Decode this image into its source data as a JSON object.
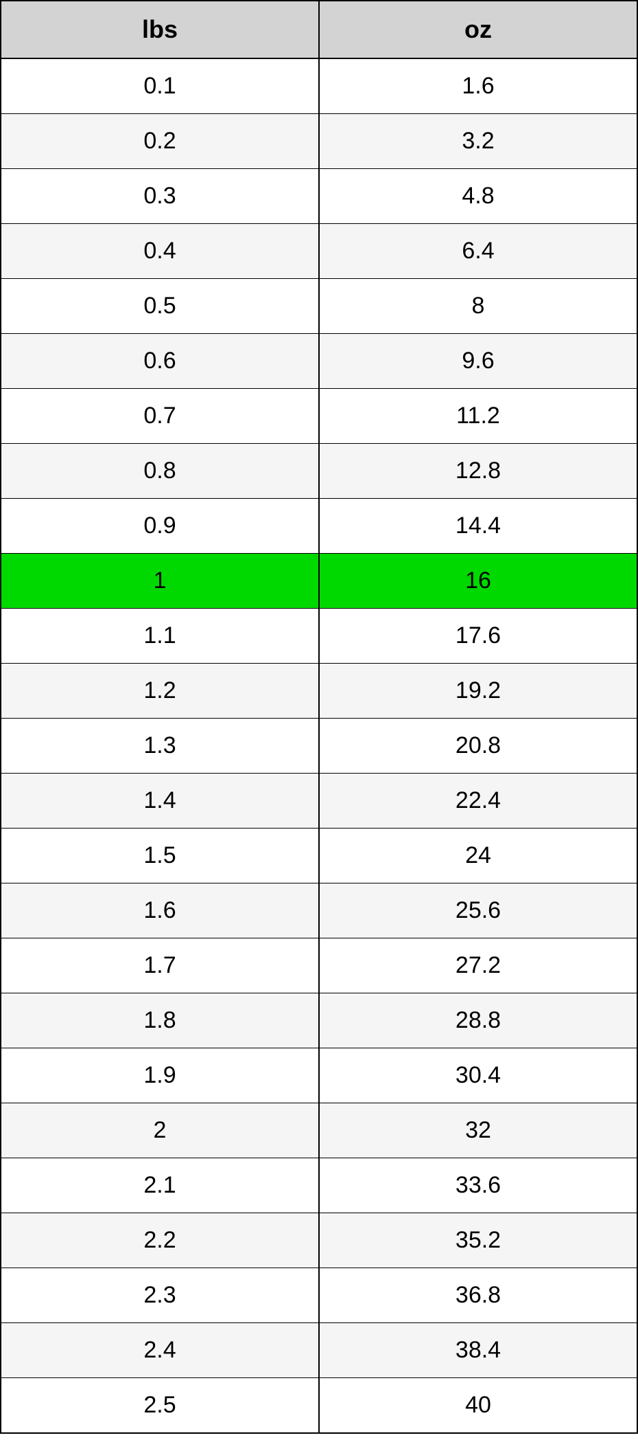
{
  "conversion_table": {
    "type": "table",
    "columns": [
      "lbs",
      "oz"
    ],
    "header_bg_color": "#d3d3d3",
    "header_font_weight": "bold",
    "header_fontsize": 36,
    "cell_fontsize": 34,
    "border_color": "#000000",
    "row_bg_odd": "#ffffff",
    "row_bg_even": "#f5f5f5",
    "highlight_bg": "#00d900",
    "highlight_row_index": 9,
    "column_widths": [
      "50%",
      "50%"
    ],
    "text_align": "center",
    "rows": [
      {
        "lbs": "0.1",
        "oz": "1.6"
      },
      {
        "lbs": "0.2",
        "oz": "3.2"
      },
      {
        "lbs": "0.3",
        "oz": "4.8"
      },
      {
        "lbs": "0.4",
        "oz": "6.4"
      },
      {
        "lbs": "0.5",
        "oz": "8"
      },
      {
        "lbs": "0.6",
        "oz": "9.6"
      },
      {
        "lbs": "0.7",
        "oz": "11.2"
      },
      {
        "lbs": "0.8",
        "oz": "12.8"
      },
      {
        "lbs": "0.9",
        "oz": "14.4"
      },
      {
        "lbs": "1",
        "oz": "16"
      },
      {
        "lbs": "1.1",
        "oz": "17.6"
      },
      {
        "lbs": "1.2",
        "oz": "19.2"
      },
      {
        "lbs": "1.3",
        "oz": "20.8"
      },
      {
        "lbs": "1.4",
        "oz": "22.4"
      },
      {
        "lbs": "1.5",
        "oz": "24"
      },
      {
        "lbs": "1.6",
        "oz": "25.6"
      },
      {
        "lbs": "1.7",
        "oz": "27.2"
      },
      {
        "lbs": "1.8",
        "oz": "28.8"
      },
      {
        "lbs": "1.9",
        "oz": "30.4"
      },
      {
        "lbs": "2",
        "oz": "32"
      },
      {
        "lbs": "2.1",
        "oz": "33.6"
      },
      {
        "lbs": "2.2",
        "oz": "35.2"
      },
      {
        "lbs": "2.3",
        "oz": "36.8"
      },
      {
        "lbs": "2.4",
        "oz": "38.4"
      },
      {
        "lbs": "2.5",
        "oz": "40"
      }
    ]
  }
}
